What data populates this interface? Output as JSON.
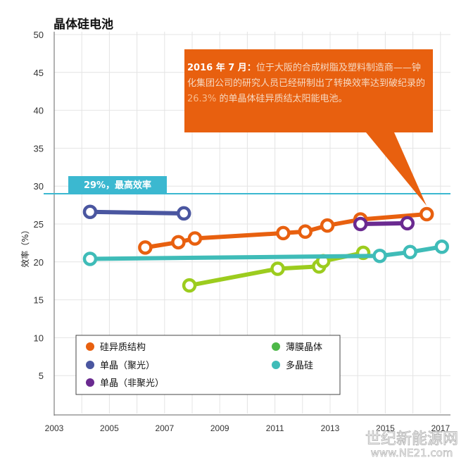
{
  "chart_data": {
    "type": "line",
    "title": "晶体硅电池",
    "ylabel": "效率（%）",
    "xlabel": "",
    "xlim": [
      2003,
      2017
    ],
    "ylim": [
      0,
      50
    ],
    "x_ticks": [
      "2003",
      "2005",
      "2007",
      "2009",
      "2011",
      "2013",
      "2015",
      "2017"
    ],
    "y_ticks": [
      "5",
      "10",
      "15",
      "20",
      "25",
      "30",
      "35",
      "40",
      "45",
      "50"
    ],
    "grid": true,
    "legend_placement": "bottom-left",
    "reference_line": {
      "value": 29,
      "label": "29%，最高效率",
      "color": "#3bb8d0"
    },
    "series": [
      {
        "name": "硅异质结构",
        "color": "#e8600f",
        "points": [
          [
            2006.3,
            21.9
          ],
          [
            2007.5,
            22.6
          ],
          [
            2008.1,
            23.1
          ],
          [
            2011.3,
            23.8
          ],
          [
            2012.1,
            24.0
          ],
          [
            2012.9,
            24.8
          ],
          [
            2014.1,
            25.6
          ],
          [
            2016.5,
            26.3
          ]
        ]
      },
      {
        "name": "单晶（聚光）",
        "color": "#4a56a0",
        "points": [
          [
            2004.3,
            26.6
          ],
          [
            2007.7,
            26.4
          ]
        ]
      },
      {
        "name": "单晶（非聚光）",
        "color": "#6a2a90",
        "points": [
          [
            2014.1,
            25.0
          ],
          [
            2015.8,
            25.1
          ]
        ]
      },
      {
        "name": "薄膜晶体",
        "color": "#9ccc1e",
        "points": [
          [
            2007.9,
            16.9
          ],
          [
            2011.1,
            19.1
          ],
          [
            2012.6,
            19.4
          ],
          [
            2012.75,
            20.1
          ],
          [
            2014.2,
            21.2
          ]
        ]
      },
      {
        "name": "多晶硅",
        "color": "#3fbcb8",
        "points": [
          [
            2004.3,
            20.4
          ],
          [
            2014.8,
            20.8
          ],
          [
            2015.9,
            21.3
          ],
          [
            2017.05,
            22.0
          ]
        ]
      }
    ],
    "legend_dot_colors": [
      "#e8600f",
      "#4a56a0",
      "#6a2a90",
      "#4db848",
      "#3fbcb8"
    ],
    "annotation": {
      "date": "2016 年 7 月：",
      "text1": "位于大阪的合成树脂及塑料制造商——钟化集团公司的研究人员已经研制出了转换效率达到破纪录的 ",
      "highlight": "26.3%",
      "text2": " 的单晶体硅异质结太阳能电池。",
      "color": "#e8600f"
    }
  },
  "watermark": {
    "line1": "世纪新能源网",
    "line2": "www.NE21.com"
  }
}
